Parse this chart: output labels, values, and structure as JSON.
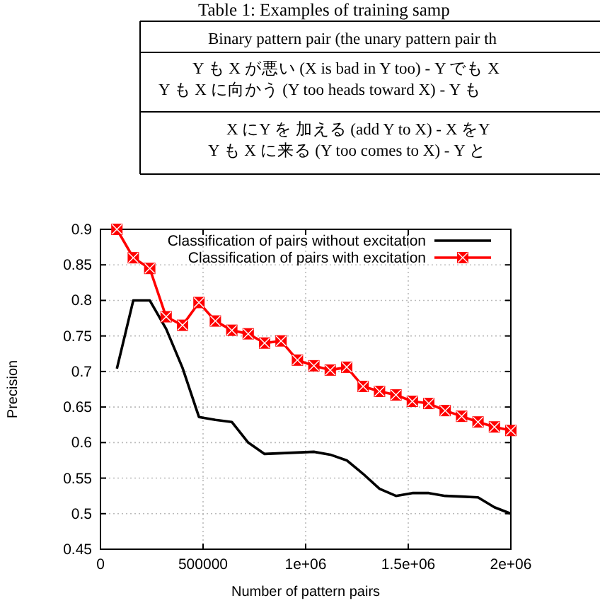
{
  "chart_data": {
    "type": "line",
    "xlabel": "Number of pattern pairs",
    "ylabel": "Precision",
    "annotations": [
      "Table 1: Examples of training samp",
      "Binary pattern pair (the unary pattern pair th",
      "Y も X が悪い (X is bad in Y too) - Y でも X",
      "Y も X に向かう (Y too heads toward X) - Y も",
      "X にY を 加える (add Y to X) - X をY",
      "Y も X に来る (Y too comes to X) - Y と"
    ],
    "x": [
      80000,
      160000,
      240000,
      320000,
      400000,
      480000,
      560000,
      640000,
      720000,
      800000,
      880000,
      960000,
      1040000,
      1120000,
      1200000,
      1280000,
      1360000,
      1440000,
      1520000,
      1600000,
      1680000,
      1760000,
      1840000,
      1920000,
      2000000
    ],
    "series": [
      {
        "name": "Classification of pairs without excitation",
        "color": "#000000",
        "marker": "none",
        "values": [
          0.704,
          0.8,
          0.8,
          0.76,
          0.705,
          0.636,
          0.632,
          0.629,
          0.6,
          0.584,
          0.585,
          0.586,
          0.587,
          0.583,
          0.575,
          0.556,
          0.535,
          0.525,
          0.529,
          0.529,
          0.525,
          0.524,
          0.523,
          0.509,
          0.5
        ]
      },
      {
        "name": "Classification of pairs with excitation",
        "color": "#ff0000",
        "marker": "square",
        "values": [
          0.9,
          0.86,
          0.845,
          0.777,
          0.765,
          0.797,
          0.771,
          0.758,
          0.753,
          0.74,
          0.743,
          0.716,
          0.708,
          0.702,
          0.706,
          0.679,
          0.672,
          0.667,
          0.658,
          0.655,
          0.645,
          0.637,
          0.629,
          0.622,
          0.617
        ]
      }
    ],
    "xlim": [
      0,
      2000000
    ],
    "xticks": [
      0,
      500000,
      {
        "value": 1000000,
        "label": "1e+06"
      },
      {
        "value": 1500000,
        "label": "1.5e+06"
      },
      {
        "value": 2000000,
        "label": "2e+06"
      }
    ],
    "ylim": [
      0.45,
      0.9
    ],
    "yticks": [
      0.45,
      0.5,
      0.55,
      0.6,
      0.65,
      0.7,
      0.75,
      0.8,
      0.85,
      0.9
    ],
    "grid": true,
    "legend": "top right"
  }
}
